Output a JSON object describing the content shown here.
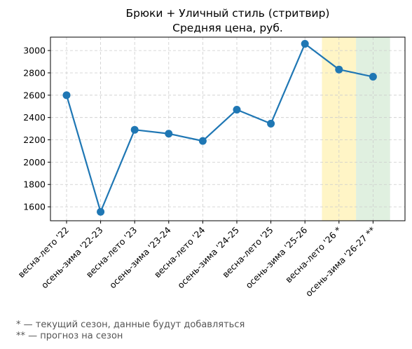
{
  "chart_data": {
    "type": "line",
    "title": "Брюки + Уличный стиль (стритвир)",
    "subtitle": "Средняя цена, руб.",
    "xlabel": "",
    "ylabel": "",
    "categories": [
      "весна-лето '22",
      "осень-зима '22-23",
      "весна-лето '23",
      "осень-зима '23-24",
      "весна-лето '24",
      "осень-зима '24-25",
      "весна-лето '25",
      "осень-зима '25-26",
      "весна-лето '26 *",
      "осень-зима '26-27 **"
    ],
    "series": [
      {
        "values": [
          2600,
          1555,
          2290,
          2255,
          2190,
          2470,
          2345,
          3060,
          2830,
          2765
        ],
        "color": "#1f77b4"
      }
    ],
    "ylim": [
      1475,
      3120
    ],
    "yticks": [
      1600,
      1800,
      2000,
      2200,
      2400,
      2600,
      2800,
      3000
    ],
    "grid": true,
    "legend": "none",
    "highlights": [
      {
        "category_index": 8,
        "color": "#fff2b3",
        "meaning": "current season"
      },
      {
        "category_index": 9,
        "color": "#d5ebd5",
        "meaning": "forecast"
      }
    ]
  },
  "footnotes": [
    "* — текущий сезон, данные будут добавляться",
    "** — прогноз на сезон"
  ]
}
